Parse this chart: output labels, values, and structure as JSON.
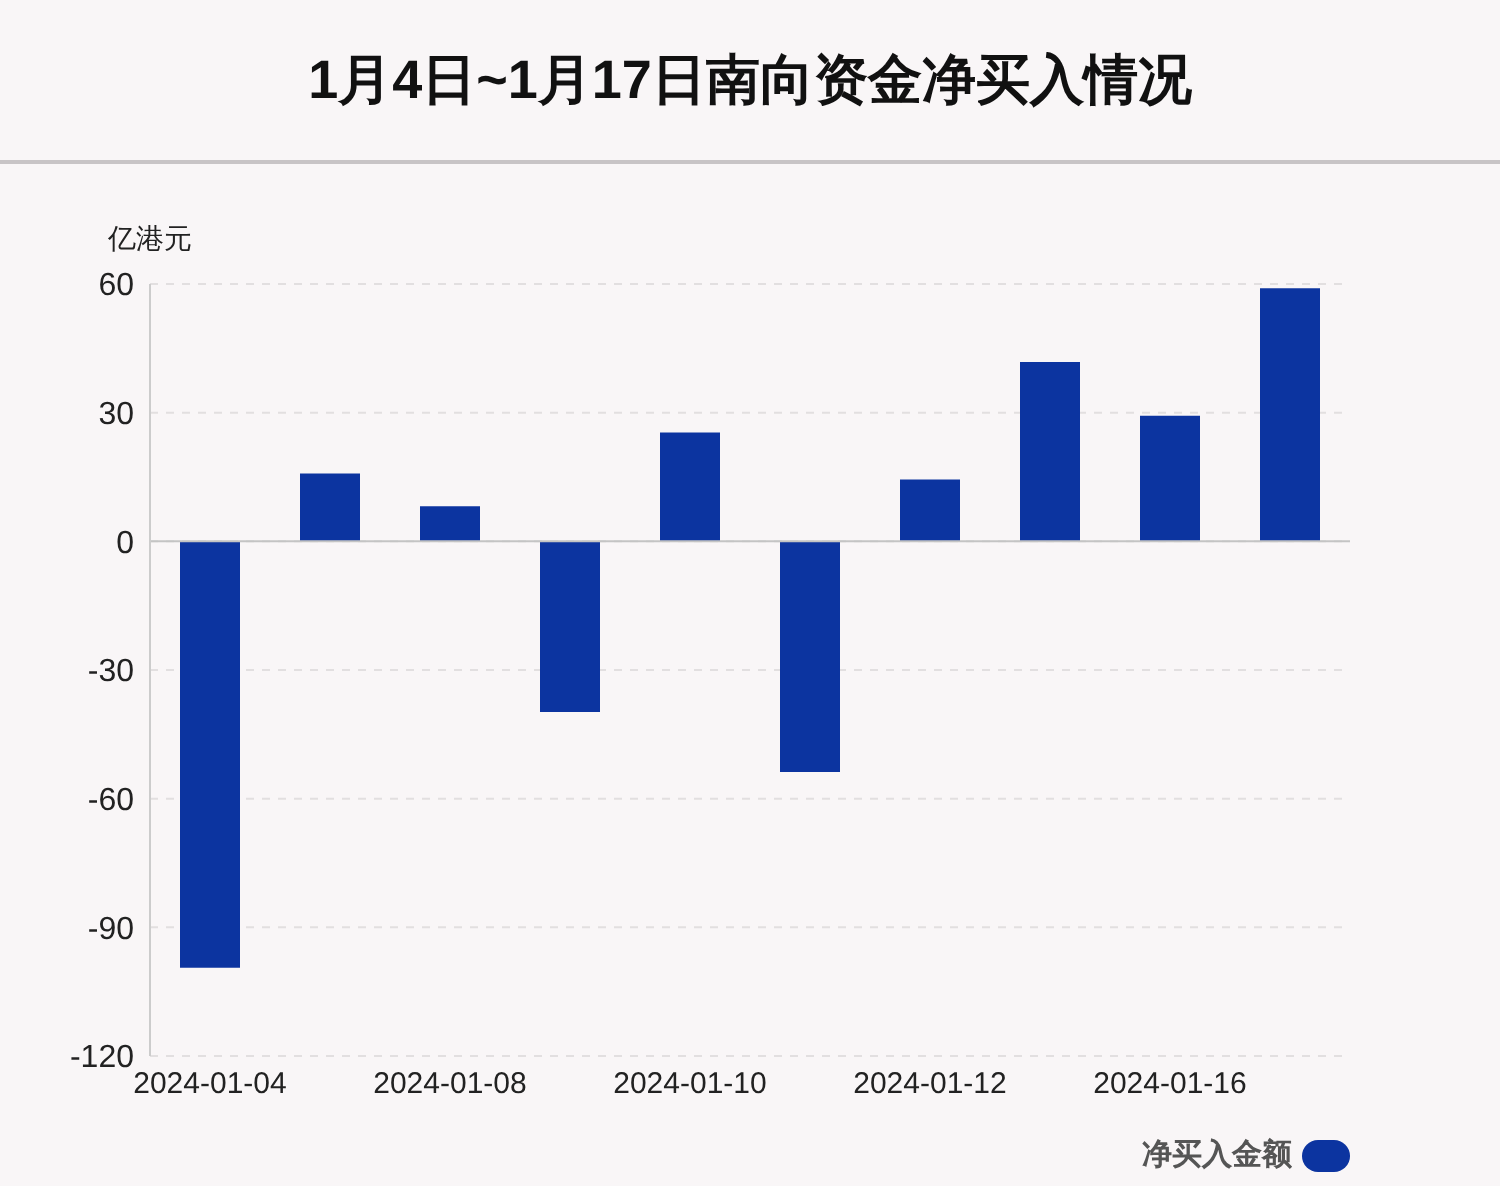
{
  "chart_data": {
    "type": "bar",
    "title": "1月4日~1月17日南向资金净买入情况",
    "ylabel": "亿港元",
    "categories": [
      "2024-01-04",
      null,
      "2024-01-08",
      null,
      "2024-01-10",
      null,
      "2024-01-12",
      null,
      "2024-01-16",
      null
    ],
    "series": [
      {
        "name": "净买入金额",
        "color": "#0c34a0",
        "values": [
          -99.4,
          15.8,
          8.2,
          -39.8,
          25.4,
          -53.8,
          14.4,
          41.8,
          29.3,
          59.0
        ]
      }
    ],
    "ylim": [
      -120,
      60
    ],
    "yticks": [
      -120,
      -90,
      -60,
      -30,
      0,
      30,
      60
    ],
    "grid": "y",
    "legend": "bottom right"
  }
}
